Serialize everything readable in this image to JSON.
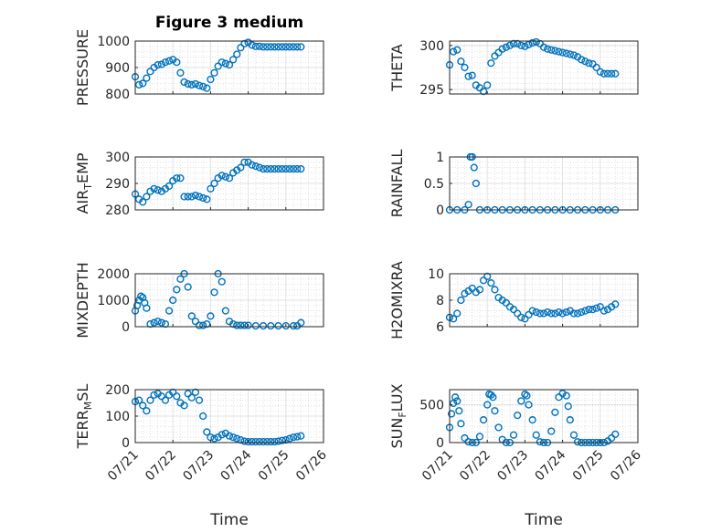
{
  "figure": {
    "title": "Figure 3 medium",
    "xlabel": "Time",
    "marker_color": "#0072BD",
    "x_ticks": [
      "07/21",
      "07/22",
      "07/23",
      "07/24",
      "07/25",
      "07/26"
    ]
  },
  "chart_data": [
    {
      "type": "scatter",
      "id": "pressure",
      "title": "Figure 3 medium",
      "ylabel": "PRESSURE",
      "ylim": [
        800,
        1000
      ],
      "yticks": [
        800,
        900,
        1000
      ],
      "xlim": [
        0,
        5
      ],
      "grid": true,
      "x": [
        0.0,
        0.1,
        0.2,
        0.3,
        0.4,
        0.5,
        0.6,
        0.7,
        0.8,
        0.9,
        1.0,
        1.1,
        1.2,
        1.3,
        1.4,
        1.5,
        1.6,
        1.7,
        1.8,
        1.9,
        2.0,
        2.1,
        2.2,
        2.3,
        2.4,
        2.5,
        2.6,
        2.7,
        2.8,
        2.9,
        3.0,
        3.1,
        3.2,
        3.3,
        3.4,
        3.5,
        3.6,
        3.7,
        3.8,
        3.9,
        4.0,
        4.1,
        4.2,
        4.3,
        4.4
      ],
      "y": [
        865,
        835,
        840,
        860,
        885,
        900,
        910,
        912,
        920,
        925,
        930,
        920,
        880,
        845,
        838,
        835,
        838,
        832,
        828,
        822,
        855,
        880,
        905,
        920,
        915,
        910,
        930,
        950,
        975,
        990,
        995,
        985,
        980,
        980,
        978,
        978,
        978,
        978,
        978,
        978,
        978,
        978,
        978,
        978,
        978
      ]
    },
    {
      "type": "scatter",
      "id": "theta",
      "ylabel": "THETA",
      "ylim": [
        294.5,
        300.5
      ],
      "yticks": [
        295,
        300
      ],
      "xlim": [
        0,
        5
      ],
      "grid": true,
      "x": [
        0.0,
        0.1,
        0.2,
        0.3,
        0.4,
        0.5,
        0.6,
        0.7,
        0.8,
        0.9,
        1.0,
        1.1,
        1.2,
        1.3,
        1.4,
        1.5,
        1.6,
        1.7,
        1.8,
        1.9,
        2.0,
        2.1,
        2.2,
        2.3,
        2.4,
        2.5,
        2.6,
        2.7,
        2.8,
        2.9,
        3.0,
        3.1,
        3.2,
        3.3,
        3.4,
        3.5,
        3.6,
        3.7,
        3.8,
        3.9,
        4.0,
        4.1,
        4.2,
        4.3,
        4.4
      ],
      "y": [
        297.8,
        299.3,
        299.5,
        298.2,
        297.5,
        296.5,
        296.6,
        295.5,
        295.2,
        294.8,
        295.5,
        298.0,
        298.8,
        299.2,
        299.6,
        299.8,
        300.0,
        300.2,
        300.2,
        300.0,
        299.9,
        300.1,
        300.3,
        300.4,
        300.2,
        299.8,
        299.6,
        299.5,
        299.4,
        299.3,
        299.2,
        299.1,
        299.0,
        298.9,
        298.7,
        298.4,
        298.2,
        298.0,
        297.9,
        297.5,
        297.0,
        296.8,
        296.8,
        296.8,
        296.8
      ]
    },
    {
      "type": "scatter",
      "id": "airtemp",
      "ylabel": "AIR_TEMP",
      "ylim": [
        280,
        300
      ],
      "yticks": [
        280,
        290,
        300
      ],
      "xlim": [
        0,
        5
      ],
      "grid": true,
      "x": [
        0.0,
        0.1,
        0.2,
        0.3,
        0.4,
        0.5,
        0.6,
        0.7,
        0.8,
        0.9,
        1.0,
        1.1,
        1.2,
        1.3,
        1.4,
        1.5,
        1.6,
        1.7,
        1.8,
        1.9,
        2.0,
        2.1,
        2.2,
        2.3,
        2.4,
        2.5,
        2.6,
        2.7,
        2.8,
        2.9,
        3.0,
        3.1,
        3.2,
        3.3,
        3.4,
        3.5,
        3.6,
        3.7,
        3.8,
        3.9,
        4.0,
        4.1,
        4.2,
        4.3,
        4.4
      ],
      "y": [
        286,
        284,
        283,
        285,
        287,
        288,
        287.5,
        287,
        288,
        289,
        291,
        292,
        292,
        285,
        285,
        285,
        285.5,
        285,
        284.5,
        284,
        288,
        290,
        292,
        293,
        292.5,
        292,
        294,
        295,
        296,
        298,
        298,
        297,
        296.5,
        296,
        295.5,
        295.5,
        295.5,
        295.5,
        295.5,
        295.5,
        295.5,
        295.5,
        295.5,
        295.5,
        295.5
      ]
    },
    {
      "type": "scatter",
      "id": "rainfall",
      "ylabel": "RAINFALL",
      "ylim": [
        0,
        1
      ],
      "yticks": [
        0,
        0.5,
        1
      ],
      "xlim": [
        0,
        5
      ],
      "grid": true,
      "x": [
        0.0,
        0.2,
        0.4,
        0.5,
        0.55,
        0.6,
        0.65,
        0.7,
        0.8,
        1.0,
        1.2,
        1.4,
        1.6,
        1.8,
        2.0,
        2.2,
        2.4,
        2.6,
        2.8,
        3.0,
        3.2,
        3.4,
        3.6,
        3.8,
        4.0,
        4.2,
        4.4
      ],
      "y": [
        0,
        0,
        0,
        0.1,
        1.0,
        1.0,
        0.8,
        0.5,
        0,
        0,
        0,
        0,
        0,
        0,
        0,
        0,
        0,
        0,
        0,
        0,
        0,
        0,
        0,
        0,
        0,
        0,
        0
      ]
    },
    {
      "type": "scatter",
      "id": "mixdepth",
      "ylabel": "MIXDEPTH",
      "ylim": [
        0,
        2000
      ],
      "yticks": [
        0,
        1000,
        2000
      ],
      "xlim": [
        0,
        5
      ],
      "grid": true,
      "x": [
        0.0,
        0.05,
        0.1,
        0.15,
        0.2,
        0.25,
        0.3,
        0.4,
        0.5,
        0.6,
        0.7,
        0.8,
        0.9,
        1.0,
        1.1,
        1.2,
        1.3,
        1.4,
        1.5,
        1.6,
        1.7,
        1.8,
        1.9,
        2.0,
        2.1,
        2.2,
        2.3,
        2.4,
        2.5,
        2.6,
        2.7,
        2.8,
        2.9,
        3.0,
        3.2,
        3.4,
        3.6,
        3.8,
        4.0,
        4.2,
        4.3,
        4.4
      ],
      "y": [
        600,
        800,
        1000,
        1150,
        1100,
        900,
        700,
        100,
        150,
        200,
        150,
        100,
        600,
        1000,
        1400,
        1800,
        2000,
        1500,
        400,
        200,
        50,
        50,
        100,
        400,
        1300,
        2000,
        1700,
        600,
        200,
        100,
        50,
        50,
        50,
        50,
        30,
        30,
        30,
        30,
        30,
        30,
        30,
        150
      ]
    },
    {
      "type": "scatter",
      "id": "h2omixra",
      "ylabel": "H2OMIXRA",
      "ylim": [
        6,
        10
      ],
      "yticks": [
        6,
        8,
        10
      ],
      "xlim": [
        0,
        5
      ],
      "grid": true,
      "x": [
        0.0,
        0.1,
        0.2,
        0.3,
        0.4,
        0.5,
        0.6,
        0.7,
        0.8,
        0.9,
        1.0,
        1.1,
        1.2,
        1.3,
        1.4,
        1.5,
        1.6,
        1.7,
        1.8,
        1.9,
        2.0,
        2.1,
        2.2,
        2.3,
        2.4,
        2.5,
        2.6,
        2.7,
        2.8,
        2.9,
        3.0,
        3.1,
        3.2,
        3.3,
        3.4,
        3.5,
        3.6,
        3.7,
        3.8,
        3.9,
        4.0,
        4.1,
        4.2,
        4.3,
        4.4
      ],
      "y": [
        6.7,
        6.6,
        7.0,
        8.0,
        8.5,
        8.7,
        8.9,
        8.6,
        8.8,
        9.5,
        9.8,
        9.3,
        8.8,
        8.2,
        8.0,
        7.8,
        7.5,
        7.3,
        7.0,
        6.7,
        6.6,
        6.9,
        7.2,
        7.1,
        7.0,
        7.0,
        7.1,
        7.0,
        7.0,
        7.1,
        7.0,
        7.1,
        7.2,
        7.0,
        7.0,
        7.1,
        7.2,
        7.3,
        7.3,
        7.4,
        7.5,
        7.2,
        7.3,
        7.5,
        7.7
      ]
    },
    {
      "type": "scatter",
      "id": "terr_msl",
      "ylabel": "TERR_MSL",
      "ylim": [
        0,
        200
      ],
      "yticks": [
        0,
        100,
        200
      ],
      "xlim": [
        0,
        5
      ],
      "grid": true,
      "x": [
        0.0,
        0.1,
        0.2,
        0.3,
        0.4,
        0.5,
        0.6,
        0.7,
        0.8,
        0.9,
        1.0,
        1.1,
        1.2,
        1.3,
        1.4,
        1.5,
        1.6,
        1.7,
        1.8,
        1.9,
        2.0,
        2.1,
        2.2,
        2.3,
        2.4,
        2.5,
        2.6,
        2.7,
        2.8,
        2.9,
        3.0,
        3.1,
        3.2,
        3.3,
        3.4,
        3.5,
        3.6,
        3.7,
        3.8,
        3.9,
        4.0,
        4.1,
        4.2,
        4.3,
        4.4
      ],
      "y": [
        155,
        160,
        140,
        120,
        160,
        180,
        185,
        175,
        160,
        180,
        190,
        175,
        150,
        140,
        185,
        170,
        190,
        160,
        100,
        40,
        20,
        15,
        20,
        30,
        35,
        25,
        20,
        15,
        10,
        5,
        3,
        3,
        3,
        3,
        3,
        3,
        3,
        3,
        5,
        8,
        10,
        15,
        20,
        22,
        25
      ]
    },
    {
      "type": "scatter",
      "id": "sun_flux",
      "ylabel": "SUN_FLUX",
      "ylim": [
        0,
        700
      ],
      "yticks": [
        0,
        500
      ],
      "xlim": [
        0,
        5
      ],
      "grid": true,
      "x": [
        0.0,
        0.05,
        0.1,
        0.15,
        0.2,
        0.25,
        0.3,
        0.4,
        0.5,
        0.6,
        0.7,
        0.8,
        0.9,
        1.0,
        1.05,
        1.1,
        1.15,
        1.2,
        1.3,
        1.4,
        1.5,
        1.6,
        1.7,
        1.8,
        1.9,
        2.0,
        2.05,
        2.1,
        2.2,
        2.3,
        2.4,
        2.5,
        2.6,
        2.7,
        2.8,
        2.9,
        3.0,
        3.1,
        3.15,
        3.2,
        3.3,
        3.4,
        3.5,
        3.6,
        3.7,
        3.8,
        3.9,
        4.0,
        4.1,
        4.2,
        4.3,
        4.4
      ],
      "y": [
        200,
        380,
        520,
        600,
        550,
        420,
        250,
        60,
        10,
        0,
        0,
        80,
        300,
        500,
        640,
        630,
        600,
        420,
        200,
        40,
        0,
        0,
        100,
        360,
        550,
        640,
        620,
        500,
        300,
        100,
        10,
        0,
        0,
        150,
        400,
        600,
        650,
        620,
        480,
        300,
        100,
        10,
        0,
        0,
        0,
        0,
        0,
        0,
        0,
        20,
        60,
        110
      ]
    }
  ]
}
